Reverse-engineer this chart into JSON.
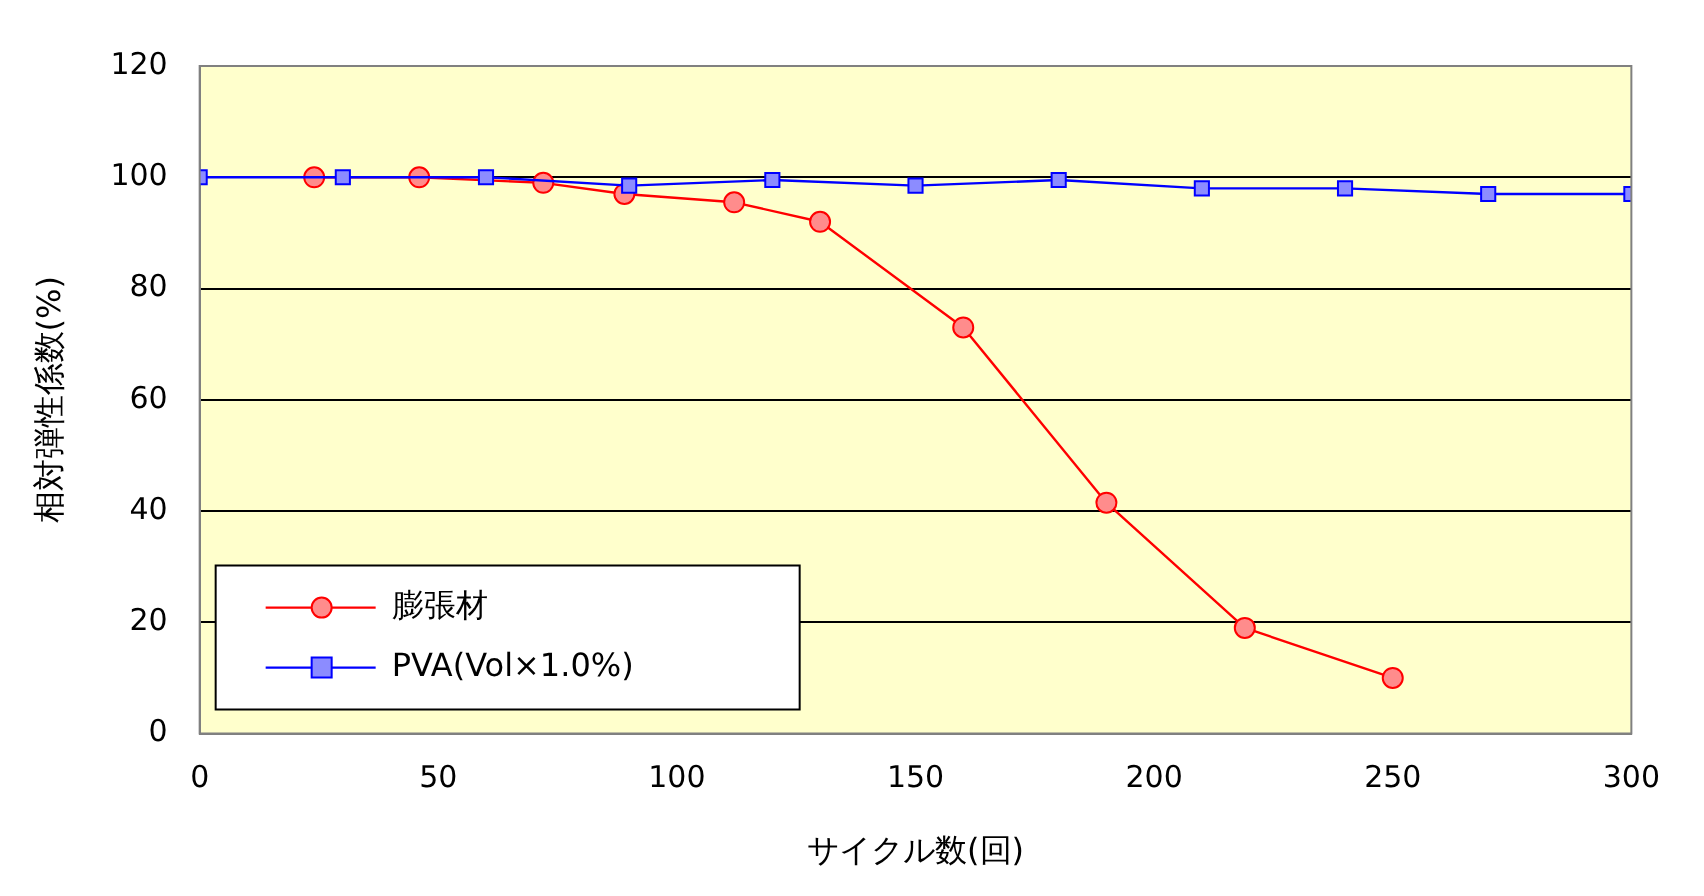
{
  "chart_data": {
    "type": "line",
    "xlabel": "サイクル数(回)",
    "ylabel": "相対弾性係数(%)",
    "xlim": [
      0,
      300
    ],
    "xticks": [
      0,
      50,
      100,
      150,
      200,
      250,
      300
    ],
    "ylim": [
      0,
      120
    ],
    "yticks": [
      0,
      20,
      40,
      60,
      80,
      100,
      120
    ],
    "grid": "y",
    "legend": "bottom left",
    "line_style": "solid",
    "series": [
      {
        "name": "膨張材",
        "color": "#ff0000",
        "marker": "circle",
        "x": [
          24,
          46,
          72,
          89,
          112,
          130,
          160,
          190,
          219,
          250
        ],
        "values": [
          100,
          100,
          99,
          97,
          95.5,
          92,
          73,
          41.5,
          19,
          10
        ]
      },
      {
        "name": "PVA(Vol×1.0%)",
        "color": "#0000ff",
        "marker": "square",
        "x": [
          0,
          30,
          60,
          90,
          120,
          150,
          180,
          210,
          240,
          270,
          300
        ],
        "values": [
          100,
          100,
          100,
          98.5,
          99.5,
          98.5,
          99.5,
          98,
          98,
          97,
          97
        ]
      }
    ]
  }
}
